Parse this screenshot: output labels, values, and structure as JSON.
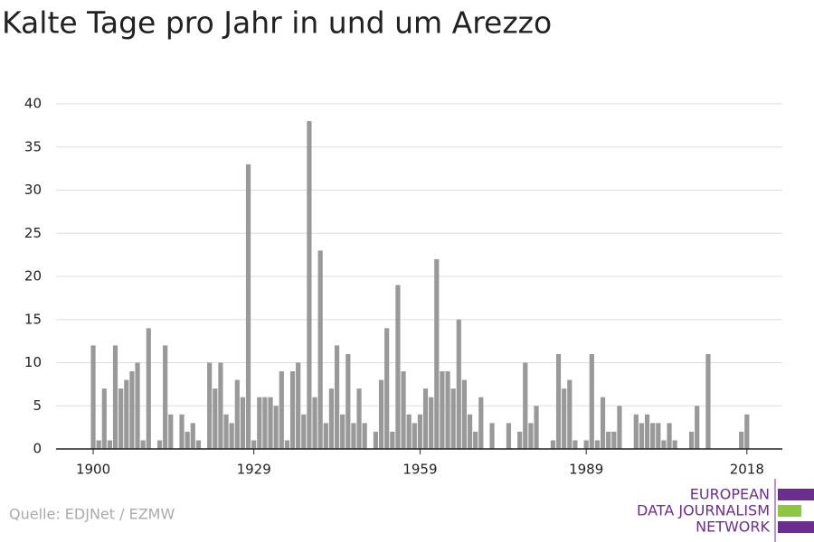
{
  "chart_data": {
    "type": "bar",
    "title": "Kalte Tage pro Jahr in und um Arezzo",
    "source": "Quelle: EDJNet / EZMW",
    "logo": [
      "EUROPEAN",
      "DATA JOURNALISM",
      "NETWORK"
    ],
    "color": "#999999",
    "x": [
      1900,
      1901,
      1902,
      1903,
      1904,
      1905,
      1906,
      1907,
      1908,
      1909,
      1910,
      1911,
      1912,
      1913,
      1914,
      1915,
      1916,
      1917,
      1918,
      1919,
      1920,
      1921,
      1922,
      1923,
      1924,
      1925,
      1926,
      1927,
      1928,
      1929,
      1930,
      1931,
      1932,
      1933,
      1934,
      1935,
      1936,
      1937,
      1938,
      1939,
      1940,
      1941,
      1942,
      1943,
      1944,
      1945,
      1946,
      1947,
      1948,
      1949,
      1950,
      1951,
      1952,
      1953,
      1954,
      1955,
      1956,
      1957,
      1958,
      1959,
      1960,
      1961,
      1962,
      1963,
      1964,
      1965,
      1966,
      1967,
      1968,
      1969,
      1970,
      1971,
      1972,
      1973,
      1974,
      1975,
      1976,
      1977,
      1978,
      1979,
      1980,
      1981,
      1982,
      1983,
      1984,
      1985,
      1986,
      1987,
      1988,
      1989,
      1990,
      1991,
      1992,
      1993,
      1994,
      1995,
      1996,
      1997,
      1998,
      1999,
      2000,
      2001,
      2002,
      2003,
      2004,
      2005,
      2006,
      2007,
      2008,
      2009,
      2010,
      2011,
      2012,
      2013,
      2014,
      2015,
      2016,
      2017,
      2018
    ],
    "values": [
      12,
      1,
      7,
      1,
      12,
      7,
      8,
      9,
      10,
      1,
      14,
      0,
      1,
      12,
      4,
      0,
      4,
      2,
      3,
      1,
      0,
      10,
      7,
      10,
      4,
      3,
      8,
      6,
      33,
      1,
      6,
      6,
      6,
      5,
      9,
      1,
      9,
      10,
      4,
      38,
      6,
      23,
      3,
      7,
      12,
      4,
      11,
      3,
      7,
      3,
      0,
      2,
      8,
      14,
      2,
      19,
      9,
      4,
      3,
      4,
      7,
      6,
      22,
      9,
      9,
      7,
      15,
      8,
      4,
      2,
      6,
      0,
      3,
      0,
      0,
      3,
      0,
      2,
      10,
      3,
      5,
      0,
      0,
      1,
      11,
      7,
      8,
      1,
      0,
      1,
      11,
      1,
      6,
      2,
      2,
      5,
      0,
      0,
      4,
      3,
      4,
      3,
      3,
      1,
      3,
      1,
      0,
      0,
      2,
      5,
      0,
      11,
      0,
      0,
      0,
      0,
      0,
      2,
      4
    ],
    "xlim": [
      1893.3,
      2024.4
    ],
    "xticks": [
      1900,
      1929,
      1959,
      1989,
      2018
    ],
    "ylim": [
      0,
      40
    ],
    "yticks": [
      0,
      5,
      10,
      15,
      20,
      25,
      30,
      35,
      40
    ],
    "grid": true
  }
}
